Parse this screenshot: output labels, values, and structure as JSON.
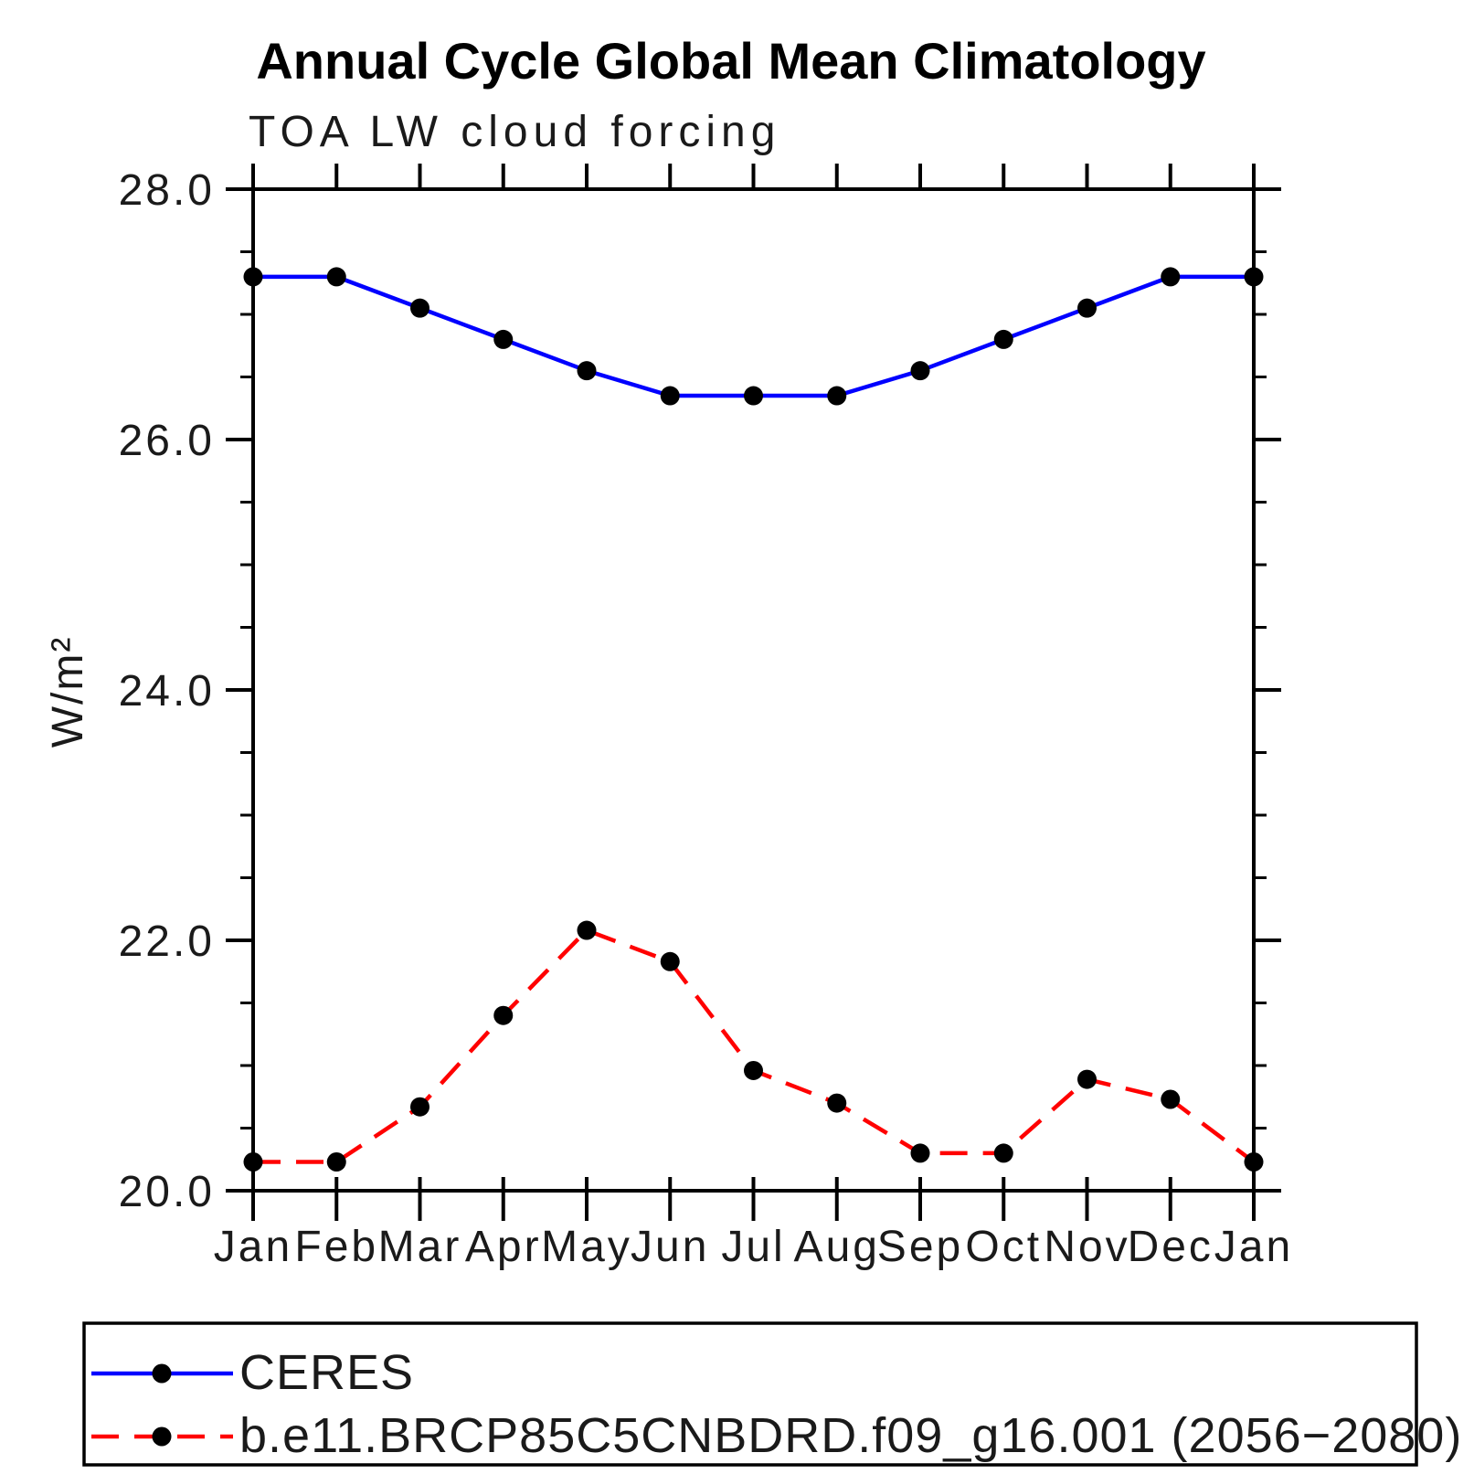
{
  "chart_data": {
    "type": "line",
    "title": "Annual Cycle Global Mean Climatology",
    "subtitle": "TOA LW cloud forcing",
    "ylabel": "W/m²",
    "xlabel": "",
    "categories": [
      "Jan",
      "Feb",
      "Mar",
      "Apr",
      "May",
      "Jun",
      "Jul",
      "Aug",
      "Sep",
      "Oct",
      "Nov",
      "Dec",
      "Jan"
    ],
    "ylim": [
      20.0,
      28.0
    ],
    "y_major_ticks": [
      28.0,
      26.0,
      24.0,
      22.0,
      20.0
    ],
    "y_tick_labels": [
      "28.0",
      "26.0",
      "24.0",
      "22.0",
      "20.0"
    ],
    "y_minor_step": 0.5,
    "grid": false,
    "legend_position": "bottom-left-box",
    "axis_color": "#000000",
    "marker_color": "#000000",
    "series": [
      {
        "name": "CERES",
        "color": "#0000ff",
        "line_style": "solid",
        "marker": "filled-circle",
        "values": [
          27.3,
          27.3,
          27.05,
          26.8,
          26.55,
          26.35,
          26.35,
          26.35,
          26.55,
          26.8,
          27.05,
          27.3,
          27.3
        ]
      },
      {
        "name": "b.e11.BRCP85C5CNBDRD.f09_g16.001 (2056−2080)",
        "color": "#ff0000",
        "line_style": "dashed",
        "marker": "filled-circle",
        "values": [
          20.23,
          20.23,
          20.67,
          21.4,
          22.08,
          21.83,
          20.96,
          20.7,
          20.3,
          20.3,
          20.89,
          20.73,
          20.23
        ]
      }
    ]
  }
}
